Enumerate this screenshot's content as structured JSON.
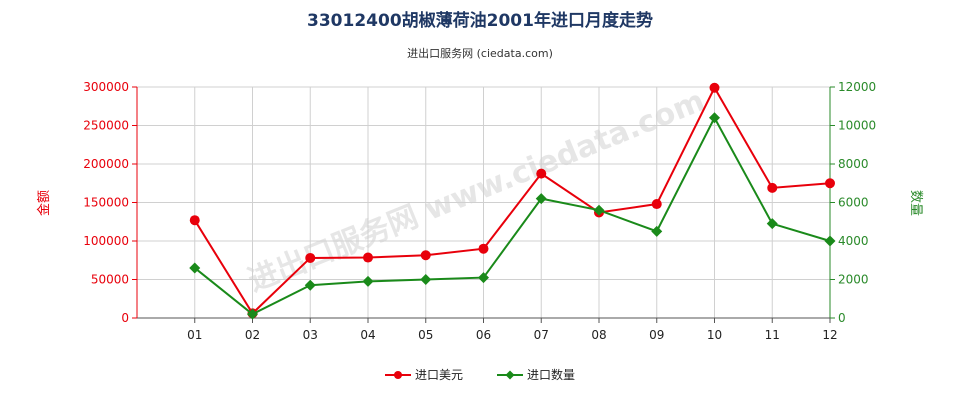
{
  "title": "33012400胡椒薄荷油2001年进口月度走势",
  "subtitle": "进出口服务网 (ciedata.com)",
  "watermark": "进出口服务网 www.ciedata.com",
  "chart_data": {
    "type": "line",
    "categories": [
      "01",
      "02",
      "03",
      "04",
      "05",
      "06",
      "07",
      "08",
      "09",
      "10",
      "11",
      "12"
    ],
    "left_axis": {
      "label": "金额",
      "ylim": [
        0,
        300000
      ],
      "ticks": [
        0,
        50000,
        100000,
        150000,
        200000,
        250000,
        300000
      ],
      "tick_labels": [
        "0",
        "50000",
        "100000",
        "150000",
        "200000",
        "250000",
        "300000"
      ],
      "color": "#e8000b"
    },
    "right_axis": {
      "label": "数量",
      "ylim": [
        0,
        12000
      ],
      "ticks": [
        0,
        2000,
        4000,
        6000,
        8000,
        10000,
        12000
      ],
      "tick_labels": [
        "0",
        "2000",
        "4000",
        "6000",
        "8000",
        "10000",
        "12000"
      ],
      "color": "#2a8a2a"
    },
    "series": [
      {
        "name": "进口美元",
        "axis": "left",
        "color": "#e8000b",
        "marker": "circle",
        "values": [
          127000,
          6000,
          78000,
          78500,
          81500,
          90000,
          187500,
          137000,
          148000,
          299000,
          169000,
          175000
        ]
      },
      {
        "name": "进口数量",
        "axis": "right",
        "color": "#1a8a1a",
        "marker": "diamond",
        "values": [
          2600,
          200,
          1700,
          1900,
          2000,
          2100,
          6200,
          5600,
          4500,
          10400,
          4900,
          4000
        ]
      }
    ],
    "grid": true,
    "legend_position": "bottom-center"
  }
}
